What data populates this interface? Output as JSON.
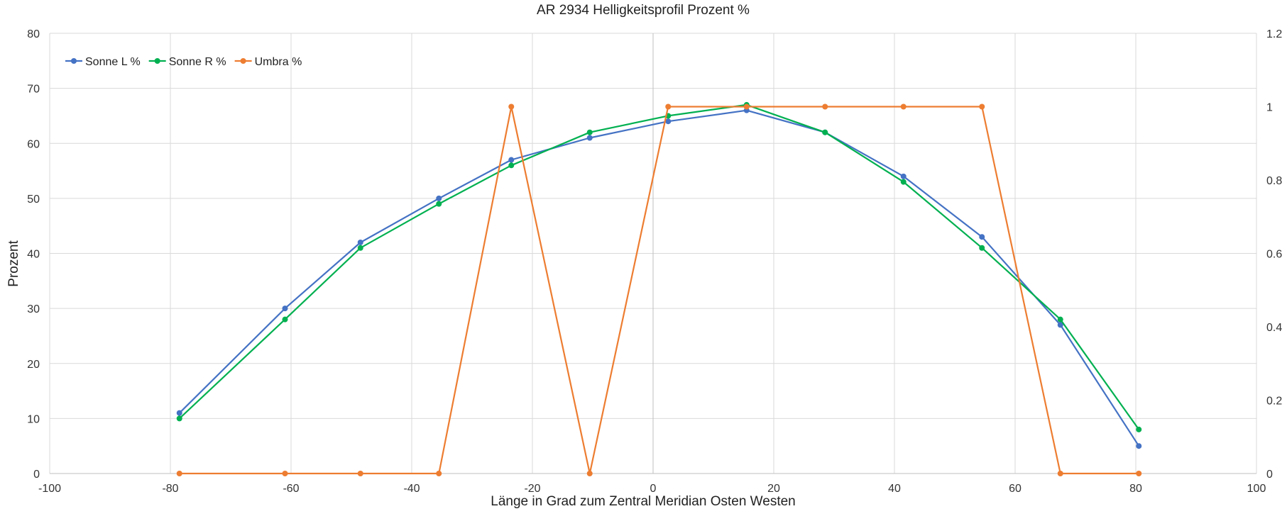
{
  "chart_data": {
    "type": "line",
    "title": "AR 2934 Helligkeitsprofil Prozent %",
    "xlabel": "Länge in Grad zum Zentral Meridian Osten Westen",
    "ylabel": "Prozent",
    "y2label": "",
    "xlim": [
      -100,
      100
    ],
    "ylim": [
      0,
      80
    ],
    "y2lim": [
      0,
      1.2
    ],
    "x_ticks": [
      -100,
      -80,
      -60,
      -40,
      -20,
      0,
      20,
      40,
      60,
      80,
      100
    ],
    "y_ticks": [
      0,
      10,
      20,
      30,
      40,
      50,
      60,
      70,
      80
    ],
    "y2_ticks": [
      0,
      0.2,
      0.4,
      0.6,
      0.8,
      1,
      1.2
    ],
    "grid": true,
    "legend_position": "top-left",
    "series": [
      {
        "name": "Sonne L %",
        "axis": "left",
        "color": "#4472C4",
        "x": [
          -78.5,
          -61,
          -48.5,
          -35.5,
          -23.5,
          -10.5,
          2.5,
          15.5,
          28.5,
          41.5,
          54.5,
          67.5,
          80.5
        ],
        "values": [
          11,
          30,
          42,
          50,
          57,
          61,
          64,
          66,
          62,
          54,
          43,
          27,
          5
        ]
      },
      {
        "name": "Sonne R %",
        "axis": "left",
        "color": "#00B050",
        "x": [
          -78.5,
          -61,
          -48.5,
          -35.5,
          -23.5,
          -10.5,
          2.5,
          15.5,
          28.5,
          41.5,
          54.5,
          67.5,
          80.5
        ],
        "values": [
          10,
          28,
          41,
          49,
          56,
          62,
          65,
          67,
          62,
          53,
          41,
          28,
          8
        ]
      },
      {
        "name": "Umbra %",
        "axis": "right",
        "color": "#ED7D31",
        "x": [
          -78.5,
          -61,
          -48.5,
          -35.5,
          -23.5,
          -10.5,
          2.5,
          15.5,
          28.5,
          41.5,
          54.5,
          67.5,
          80.5
        ],
        "values": [
          0,
          0,
          0,
          0,
          1,
          0,
          1,
          1,
          1,
          1,
          1,
          0,
          0
        ]
      }
    ]
  }
}
